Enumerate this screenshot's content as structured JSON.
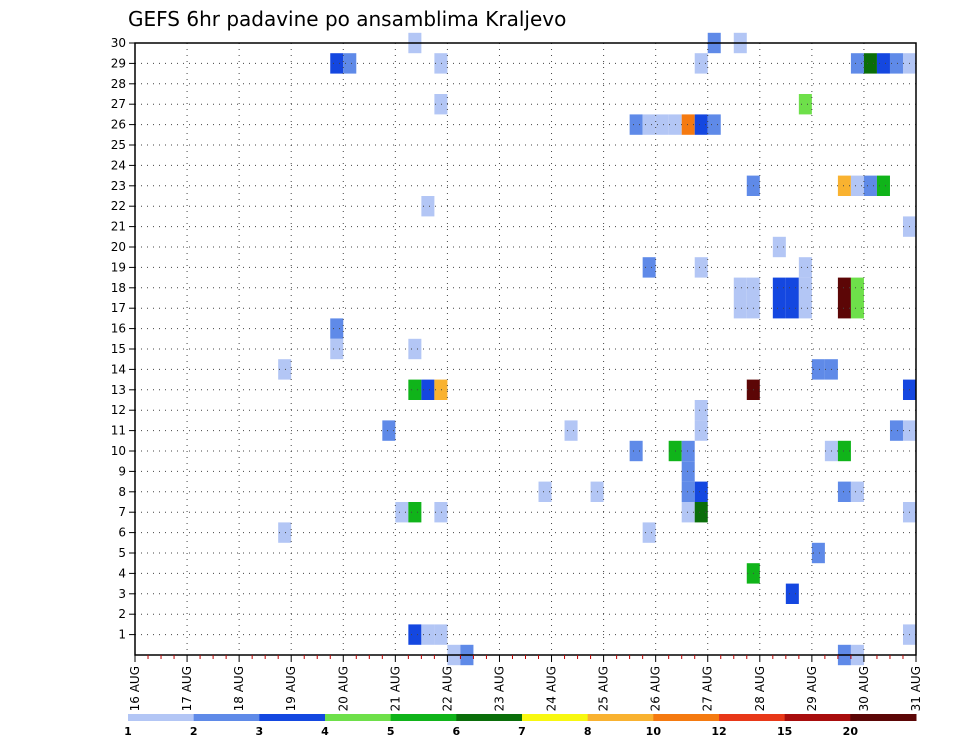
{
  "chart_data": {
    "type": "heatmap",
    "title": "GEFS 6hr padavine po ansamblima Kraljevo",
    "x_ticks": [
      "16 AUG",
      "17 AUG",
      "18 AUG",
      "19 AUG",
      "20 AUG",
      "21 AUG",
      "22 AUG",
      "23 AUG",
      "24 AUG",
      "25 AUG",
      "26 AUG",
      "27 AUG",
      "28 AUG",
      "29 AUG",
      "30 AUG",
      "31 AUG"
    ],
    "y_ticks": [
      "1",
      "2",
      "3",
      "4",
      "5",
      "6",
      "7",
      "8",
      "9",
      "10",
      "11",
      "12",
      "13",
      "14",
      "15",
      "16",
      "17",
      "18",
      "19",
      "20",
      "21",
      "22",
      "23",
      "24",
      "25",
      "26",
      "27",
      "28",
      "29",
      "30"
    ],
    "xlim": [
      "16 AUG 00z",
      "31 AUG 00z"
    ],
    "ylim": [
      0,
      30
    ],
    "step_hours": 6,
    "grid": true,
    "legend_position": "bottom",
    "colorbar": {
      "labels": [
        "1",
        "2",
        "3",
        "4",
        "5",
        "6",
        "7",
        "8",
        "10",
        "12",
        "15",
        "20"
      ],
      "colors": [
        "#b3c6f5",
        "#5f8ae8",
        "#1447e0",
        "#6ee04a",
        "#10b41a",
        "#0a6e0a",
        "#f8f810",
        "#f9b230",
        "#f57a10",
        "#e83818",
        "#a80d0d",
        "#5c0606"
      ]
    },
    "cells": [
      {
        "t": "21 AUG 06z",
        "m": 30,
        "c": 1
      },
      {
        "t": "27 AUG 00z",
        "m": 30,
        "c": 2
      },
      {
        "t": "27 AUG 12z",
        "m": 30,
        "c": 1
      },
      {
        "t": "19 AUG 18z",
        "m": 29,
        "c": 3
      },
      {
        "t": "20 AUG 00z",
        "m": 29,
        "c": 2
      },
      {
        "t": "21 AUG 18z",
        "m": 29,
        "c": 1
      },
      {
        "t": "26 AUG 18z",
        "m": 29,
        "c": 1
      },
      {
        "t": "29 AUG 18z",
        "m": 29,
        "c": 2
      },
      {
        "t": "30 AUG 00z",
        "m": 29,
        "c": 6
      },
      {
        "t": "30 AUG 06z",
        "m": 29,
        "c": 3
      },
      {
        "t": "30 AUG 12z",
        "m": 29,
        "c": 2
      },
      {
        "t": "30 AUG 18z",
        "m": 29,
        "c": 1
      },
      {
        "t": "21 AUG 18z",
        "m": 27,
        "c": 1
      },
      {
        "t": "28 AUG 18z",
        "m": 27,
        "c": 4
      },
      {
        "t": "25 AUG 12z",
        "m": 26,
        "c": 2
      },
      {
        "t": "25 AUG 18z",
        "m": 26,
        "c": 1
      },
      {
        "t": "26 AUG 00z",
        "m": 26,
        "c": 1
      },
      {
        "t": "26 AUG 06z",
        "m": 26,
        "c": 1
      },
      {
        "t": "26 AUG 12z",
        "m": 26,
        "c": 10
      },
      {
        "t": "26 AUG 18z",
        "m": 26,
        "c": 3
      },
      {
        "t": "27 AUG 00z",
        "m": 26,
        "c": 2
      },
      {
        "t": "27 AUG 18z",
        "m": 23,
        "c": 2
      },
      {
        "t": "29 AUG 12z",
        "m": 23,
        "c": 8
      },
      {
        "t": "29 AUG 18z",
        "m": 23,
        "c": 1
      },
      {
        "t": "30 AUG 00z",
        "m": 23,
        "c": 2
      },
      {
        "t": "30 AUG 06z",
        "m": 23,
        "c": 5
      },
      {
        "t": "21 AUG 12z",
        "m": 22,
        "c": 1
      },
      {
        "t": "30 AUG 18z",
        "m": 21,
        "c": 1
      },
      {
        "t": "28 AUG 06z",
        "m": 20,
        "c": 1
      },
      {
        "t": "25 AUG 18z",
        "m": 19,
        "c": 2
      },
      {
        "t": "26 AUG 18z",
        "m": 19,
        "c": 1
      },
      {
        "t": "28 AUG 18z",
        "m": 19,
        "c": 1
      },
      {
        "t": "27 AUG 12z",
        "m": 18,
        "c": 1
      },
      {
        "t": "27 AUG 18z",
        "m": 18,
        "c": 1
      },
      {
        "t": "28 AUG 06z",
        "m": 18,
        "c": 3
      },
      {
        "t": "28 AUG 12z",
        "m": 18,
        "c": 3
      },
      {
        "t": "28 AUG 18z",
        "m": 18,
        "c": 1
      },
      {
        "t": "29 AUG 12z",
        "m": 18,
        "c": 20
      },
      {
        "t": "29 AUG 18z",
        "m": 18,
        "c": 4
      },
      {
        "t": "27 AUG 12z",
        "m": 17,
        "c": 1
      },
      {
        "t": "27 AUG 18z",
        "m": 17,
        "c": 1
      },
      {
        "t": "28 AUG 06z",
        "m": 17,
        "c": 3
      },
      {
        "t": "28 AUG 12z",
        "m": 17,
        "c": 3
      },
      {
        "t": "28 AUG 18z",
        "m": 17,
        "c": 1
      },
      {
        "t": "29 AUG 12z",
        "m": 17,
        "c": 20
      },
      {
        "t": "29 AUG 18z",
        "m": 17,
        "c": 4
      },
      {
        "t": "19 AUG 18z",
        "m": 16,
        "c": 2
      },
      {
        "t": "19 AUG 18z",
        "m": 15,
        "c": 1
      },
      {
        "t": "21 AUG 06z",
        "m": 15,
        "c": 1
      },
      {
        "t": "18 AUG 18z",
        "m": 14,
        "c": 1
      },
      {
        "t": "29 AUG 00z",
        "m": 14,
        "c": 2
      },
      {
        "t": "29 AUG 06z",
        "m": 14,
        "c": 2
      },
      {
        "t": "21 AUG 06z",
        "m": 13,
        "c": 5
      },
      {
        "t": "21 AUG 12z",
        "m": 13,
        "c": 3
      },
      {
        "t": "21 AUG 18z",
        "m": 13,
        "c": 8
      },
      {
        "t": "27 AUG 18z",
        "m": 13,
        "c": 20
      },
      {
        "t": "30 AUG 18z",
        "m": 13,
        "c": 3
      },
      {
        "t": "26 AUG 18z",
        "m": 12,
        "c": 1
      },
      {
        "t": "20 AUG 18z",
        "m": 11,
        "c": 2
      },
      {
        "t": "24 AUG 06z",
        "m": 11,
        "c": 1
      },
      {
        "t": "26 AUG 18z",
        "m": 11,
        "c": 1
      },
      {
        "t": "30 AUG 12z",
        "m": 11,
        "c": 2
      },
      {
        "t": "30 AUG 18z",
        "m": 11,
        "c": 1
      },
      {
        "t": "25 AUG 12z",
        "m": 10,
        "c": 2
      },
      {
        "t": "26 AUG 06z",
        "m": 10,
        "c": 5
      },
      {
        "t": "26 AUG 12z",
        "m": 10,
        "c": 2
      },
      {
        "t": "29 AUG 06z",
        "m": 10,
        "c": 1
      },
      {
        "t": "29 AUG 12z",
        "m": 10,
        "c": 5
      },
      {
        "t": "26 AUG 12z",
        "m": 9,
        "c": 2
      },
      {
        "t": "23 AUG 18z",
        "m": 8,
        "c": 1
      },
      {
        "t": "24 AUG 18z",
        "m": 8,
        "c": 1
      },
      {
        "t": "26 AUG 12z",
        "m": 8,
        "c": 2
      },
      {
        "t": "26 AUG 18z",
        "m": 8,
        "c": 3
      },
      {
        "t": "29 AUG 12z",
        "m": 8,
        "c": 2
      },
      {
        "t": "29 AUG 18z",
        "m": 8,
        "c": 1
      },
      {
        "t": "21 AUG 00z",
        "m": 7,
        "c": 1
      },
      {
        "t": "21 AUG 06z",
        "m": 7,
        "c": 5
      },
      {
        "t": "21 AUG 18z",
        "m": 7,
        "c": 1
      },
      {
        "t": "26 AUG 12z",
        "m": 7,
        "c": 1
      },
      {
        "t": "26 AUG 18z",
        "m": 7,
        "c": 6
      },
      {
        "t": "30 AUG 18z",
        "m": 7,
        "c": 1
      },
      {
        "t": "18 AUG 18z",
        "m": 6,
        "c": 1
      },
      {
        "t": "25 AUG 18z",
        "m": 6,
        "c": 1
      },
      {
        "t": "29 AUG 00z",
        "m": 5,
        "c": 2
      },
      {
        "t": "27 AUG 18z",
        "m": 4,
        "c": 5
      },
      {
        "t": "28 AUG 12z",
        "m": 3,
        "c": 3
      },
      {
        "t": "21 AUG 06z",
        "m": 1,
        "c": 3
      },
      {
        "t": "21 AUG 12z",
        "m": 1,
        "c": 1
      },
      {
        "t": "21 AUG 18z",
        "m": 1,
        "c": 1
      },
      {
        "t": "30 AUG 18z",
        "m": 1,
        "c": 1
      },
      {
        "t": "22 AUG 00z",
        "m": 0,
        "c": 1
      },
      {
        "t": "22 AUG 06z",
        "m": 0,
        "c": 2
      },
      {
        "t": "29 AUG 12z",
        "m": 0,
        "c": 2
      },
      {
        "t": "29 AUG 18z",
        "m": 0,
        "c": 1
      }
    ]
  }
}
